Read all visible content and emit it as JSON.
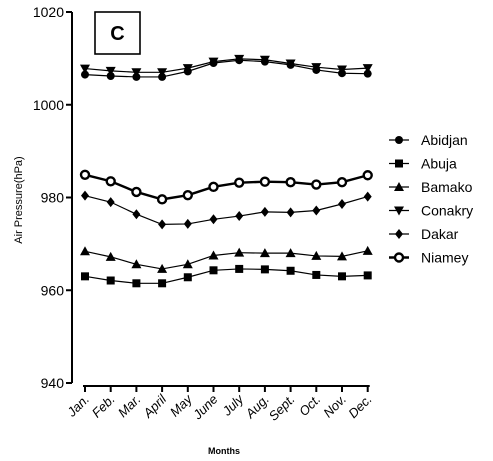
{
  "chart_data": {
    "type": "line",
    "panel_label": "C",
    "xlabel": "Months",
    "ylabel": "Air Pressure(hPa)",
    "categories": [
      "Jan.",
      "Feb.",
      "Mar.",
      "April",
      "May",
      "June",
      "July",
      "Aug.",
      "Sept.",
      "Oct.",
      "Nov.",
      "Dec."
    ],
    "ylim": [
      940,
      1020
    ],
    "yticks": [
      940,
      960,
      980,
      1000,
      1020
    ],
    "legend_position": "right",
    "grid": false,
    "series": [
      {
        "name": "Abidjan",
        "marker": "circle",
        "values": [
          1006.5,
          1006.2,
          1006.0,
          1006.0,
          1007.2,
          1009.0,
          1009.6,
          1009.3,
          1008.6,
          1007.5,
          1006.8,
          1006.7
        ]
      },
      {
        "name": "Abuja",
        "marker": "square",
        "values": [
          963.0,
          962.1,
          961.5,
          961.5,
          962.8,
          964.3,
          964.6,
          964.5,
          964.2,
          963.3,
          963.0,
          963.2
        ]
      },
      {
        "name": "Bamako",
        "marker": "triangle-up",
        "values": [
          968.4,
          967.2,
          965.6,
          964.6,
          965.6,
          967.5,
          968.1,
          968.0,
          968.0,
          967.4,
          967.3,
          968.5
        ]
      },
      {
        "name": "Conakry",
        "marker": "triangle-down",
        "values": [
          1007.8,
          1007.3,
          1007.0,
          1007.0,
          1007.9,
          1009.3,
          1009.9,
          1009.7,
          1008.9,
          1008.1,
          1007.6,
          1007.9
        ]
      },
      {
        "name": "Dakar",
        "marker": "diamond",
        "values": [
          980.4,
          979.0,
          976.4,
          974.2,
          974.3,
          975.3,
          976.0,
          976.9,
          976.8,
          977.2,
          978.6,
          980.2
        ]
      },
      {
        "name": "Niamey",
        "marker": "open-circle",
        "values": [
          984.9,
          983.5,
          981.2,
          979.6,
          980.5,
          982.3,
          983.2,
          983.4,
          983.3,
          982.8,
          983.3,
          984.8
        ]
      }
    ]
  }
}
